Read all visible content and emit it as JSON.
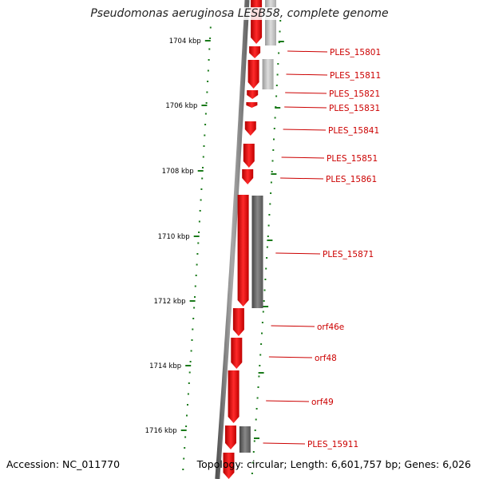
{
  "title": "Pseudomonas aeruginosa LESB58, complete genome",
  "footer": {
    "accession": "Accession: NC_011770",
    "topology": "Topology: circular; Length: 6,601,757 bp; Genes: 6,026"
  },
  "scale_labels": [
    "1704 kbp",
    "1706 kbp",
    "1708 kbp",
    "1710 kbp",
    "1712 kbp",
    "1714 kbp",
    "1716 kbp"
  ],
  "gene_labels": [
    "PLES_15801",
    "PLES_15811",
    "PLES_15821",
    "PLES_15831",
    "PLES_15841",
    "PLES_15851",
    "PLES_15861",
    "PLES_15871",
    "orf46e",
    "orf48",
    "orf49",
    "PLES_15911"
  ],
  "colors": {
    "gene": "#ee1111",
    "label": "#cc0000",
    "tick": "#1a7a1a",
    "backbone": "#777777",
    "gray_feature": "#666666",
    "light_feature": "#b0b0b0"
  }
}
